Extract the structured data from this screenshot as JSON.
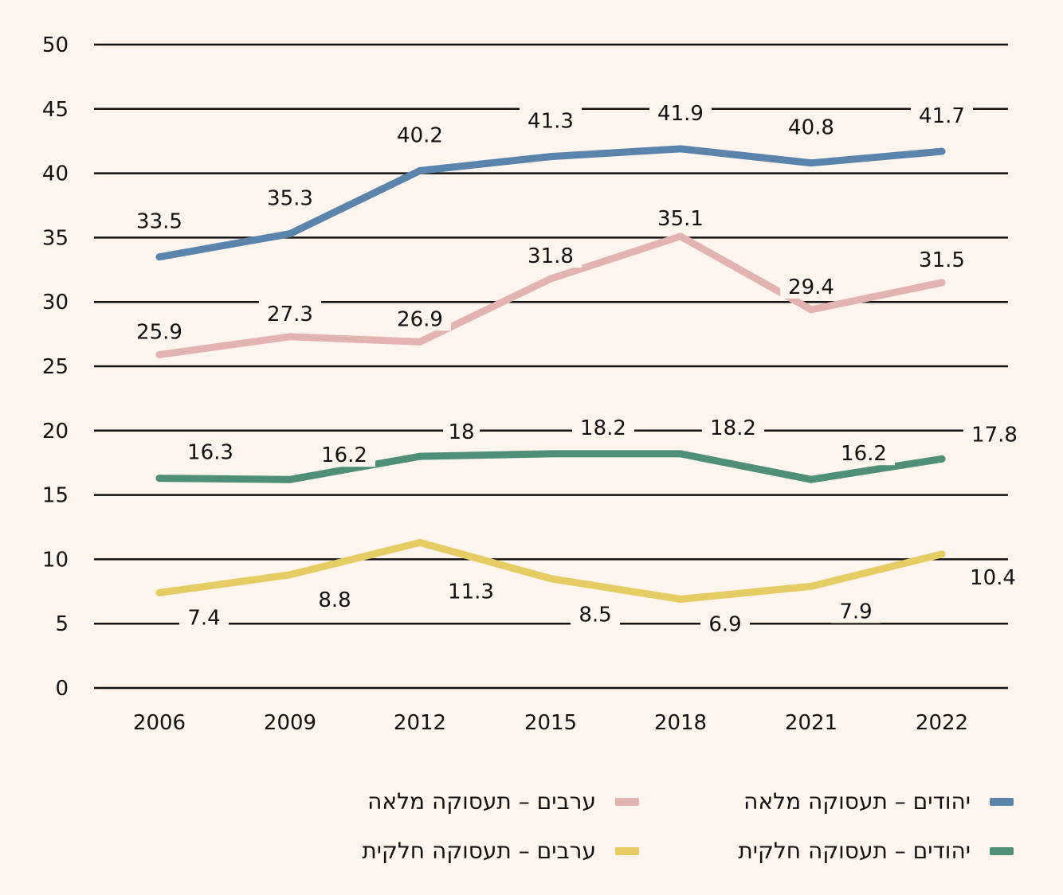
{
  "chart_data": {
    "type": "line",
    "title": "",
    "xlabel": "",
    "ylabel": "",
    "categories": [
      "2006",
      "2009",
      "2012",
      "2015",
      "2018",
      "2021",
      "2022"
    ],
    "ylim": [
      0,
      50
    ],
    "yticks": [
      0,
      5,
      10,
      15,
      20,
      25,
      30,
      35,
      40,
      45,
      50
    ],
    "grid": true,
    "legend_position": "bottom",
    "series": [
      {
        "name": "יהודים – תעסוקה מלאה",
        "color": "#5b84ad",
        "values": [
          33.5,
          35.3,
          40.2,
          41.3,
          41.9,
          40.8,
          41.7
        ]
      },
      {
        "name": "ערבים – תעסוקה מלאה",
        "color": "#e2b3b1",
        "values": [
          25.9,
          27.3,
          26.9,
          31.8,
          35.1,
          29.4,
          31.5
        ]
      },
      {
        "name": "יהודים – תעסוקה חלקית",
        "color": "#4f8f78",
        "values": [
          16.3,
          16.2,
          18,
          18.2,
          18.2,
          16.2,
          17.8
        ]
      },
      {
        "name": "ערבים – תעסוקה חלקית",
        "color": "#e6cc62",
        "values": [
          7.4,
          8.8,
          11.3,
          8.5,
          6.9,
          7.9,
          10.4
        ]
      }
    ]
  }
}
